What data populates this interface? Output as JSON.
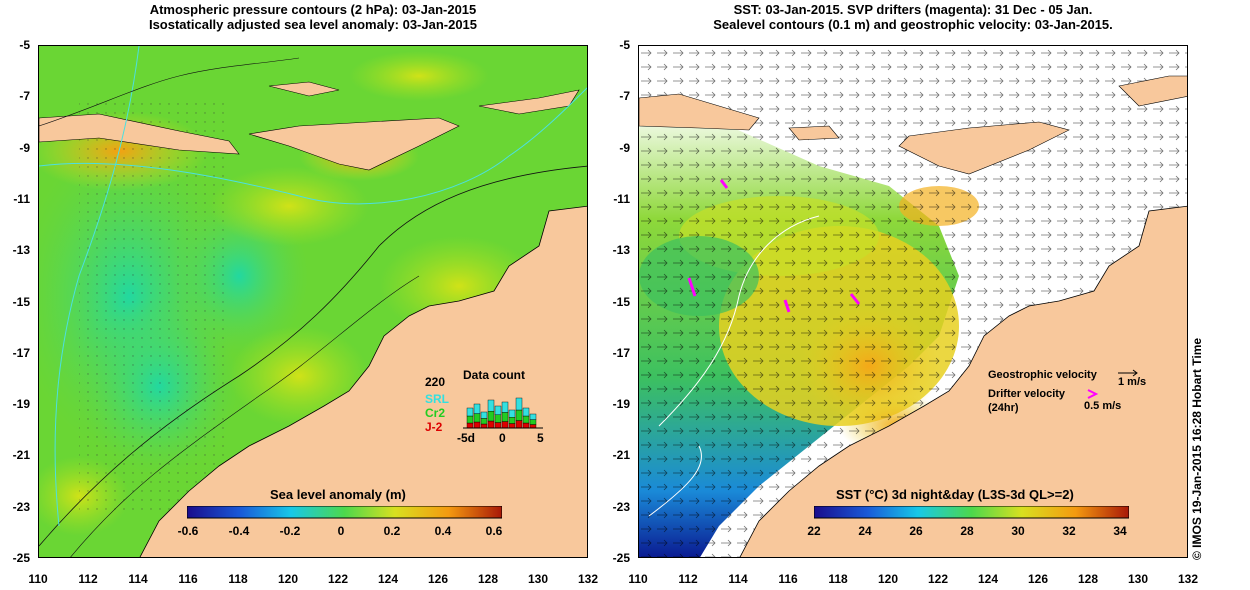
{
  "left_panel": {
    "title_line1": "Atmospheric pressure contours (2 hPa): 03-Jan-2015",
    "title_line2": "Isostatically adjusted sea level anomaly: 03-Jan-2015",
    "colorbar_title": "Sea level anomaly (m)",
    "colorbar_ticks": [
      "-0.6",
      "-0.4",
      "-0.2",
      "0",
      "0.2",
      "0.4",
      "0.6"
    ],
    "inset": {
      "title": "Data count",
      "max_label": "220",
      "series": [
        {
          "name": "SRL",
          "color": "#33e0e0"
        },
        {
          "name": "Cr2",
          "color": "#22cc22"
        },
        {
          "name": "J-2",
          "color": "#dd0000"
        }
      ],
      "x_labels": [
        "-5d",
        "0",
        "5"
      ]
    }
  },
  "right_panel": {
    "title_line1": "SST: 03-Jan-2015. SVP drifters (magenta): 31 Dec - 05 Jan.",
    "title_line2": "Sealevel contours (0.1 m) and geostrophic velocity: 03-Jan-2015.",
    "colorbar_title": "SST (°C) 3d night&day (L3S-3d QL>=2)",
    "colorbar_ticks": [
      "22",
      "24",
      "26",
      "28",
      "30",
      "32",
      "34"
    ],
    "legend": {
      "geostrophic_label": "Geostrophic velocity",
      "geostrophic_scale": "1 m/s",
      "drifter_label_line1": "Drifter velocity",
      "drifter_label_line2": "(24hr)",
      "drifter_scale": "0.5 m/s",
      "drifter_color": "#ff00ff"
    }
  },
  "axes": {
    "y_ticks": [
      "-5",
      "-7",
      "-9",
      "-11",
      "-13",
      "-15",
      "-17",
      "-19",
      "-21",
      "-23",
      "-25"
    ],
    "x_ticks": [
      "110",
      "112",
      "114",
      "116",
      "118",
      "120",
      "122",
      "124",
      "126",
      "128",
      "130",
      "132"
    ]
  },
  "credit": "© IMOS 19-Jan-2015 16:28 Hobart Time",
  "colors": {
    "land": "#f8c89c",
    "ocean_green": "#7edc2e",
    "sla_orange": "#f4b61c",
    "contour_cyan": "#4ce0e0"
  }
}
